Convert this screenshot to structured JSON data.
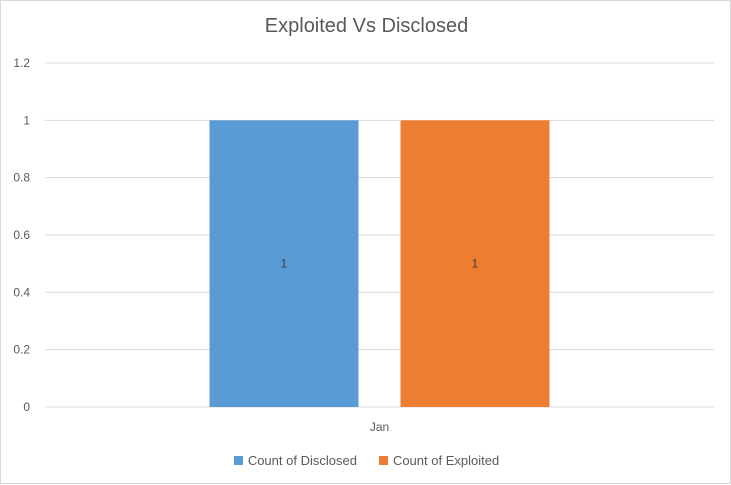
{
  "chart_data": {
    "type": "bar",
    "title": "Exploited Vs Disclosed",
    "xlabel": "",
    "ylabel": "",
    "categories": [
      "Jan"
    ],
    "series": [
      {
        "name": "Count of Disclosed",
        "values": [
          1
        ],
        "color": "#5b9bd5"
      },
      {
        "name": "Count of Exploited",
        "values": [
          1
        ],
        "color": "#ed7d31"
      }
    ],
    "ylim": [
      0,
      1.2
    ],
    "yticks": [
      "0",
      "0.2",
      "0.4",
      "0.6",
      "0.8",
      "1",
      "1.2"
    ],
    "grid": true,
    "legend_position": "bottom",
    "data_labels": [
      "1",
      "1"
    ]
  }
}
